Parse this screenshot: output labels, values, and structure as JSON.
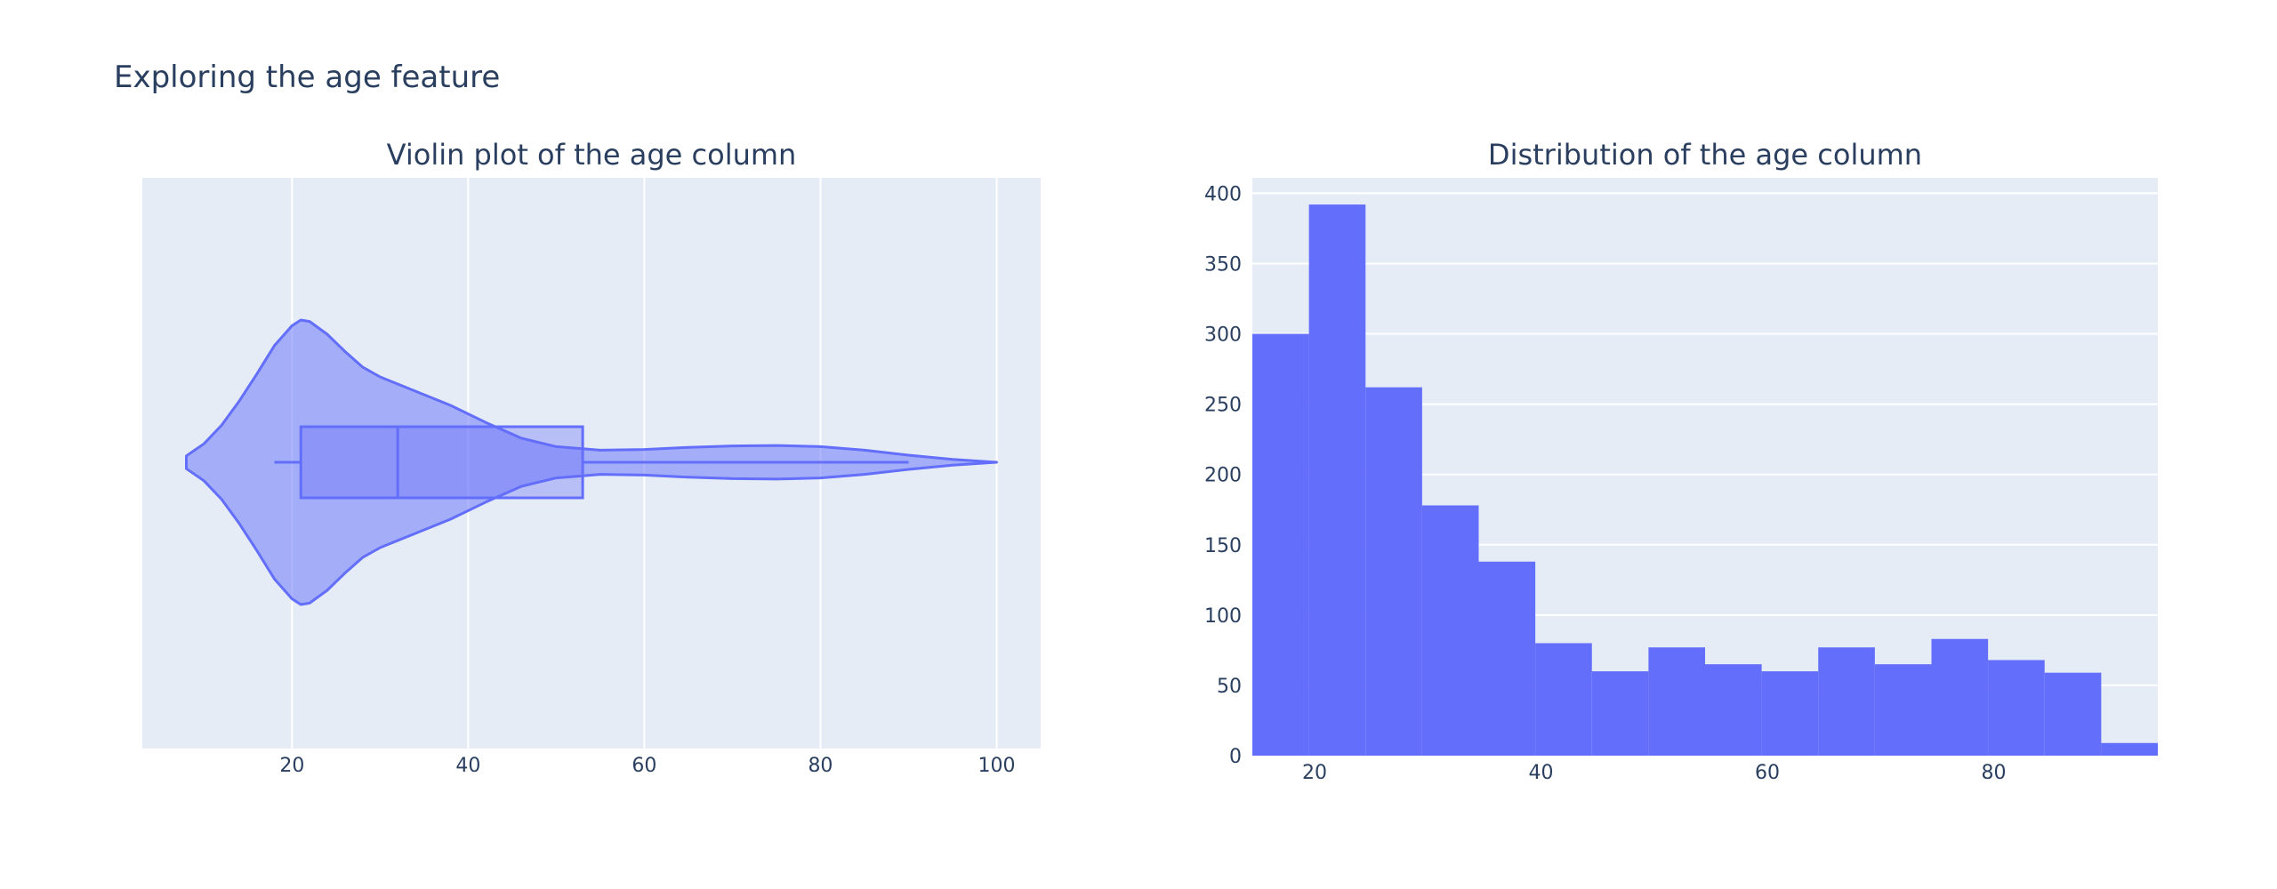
{
  "figure": {
    "title": "Exploring the age feature"
  },
  "chart_data": [
    {
      "type": "violin",
      "title": "Violin plot of the age column",
      "orientation": "horizontal",
      "xlabel": "",
      "ylabel": "",
      "xlim": [
        3,
        105
      ],
      "xticks": [
        20,
        40,
        60,
        80,
        100
      ],
      "grid": true,
      "color": "#636efa",
      "kde_profile": {
        "x": [
          8,
          10,
          12,
          14,
          16,
          18,
          20,
          21,
          22,
          24,
          26,
          28,
          30,
          34,
          38,
          42,
          46,
          50,
          55,
          60,
          65,
          70,
          75,
          80,
          85,
          90,
          95,
          100
        ],
        "width": [
          0.045,
          0.13,
          0.26,
          0.43,
          0.62,
          0.82,
          0.96,
          1.0,
          0.99,
          0.9,
          0.78,
          0.67,
          0.6,
          0.5,
          0.4,
          0.28,
          0.17,
          0.11,
          0.085,
          0.09,
          0.105,
          0.115,
          0.118,
          0.11,
          0.085,
          0.05,
          0.02,
          0.0
        ]
      },
      "box": {
        "whisker_low": 18,
        "q1": 21,
        "median": 32,
        "q3": 53,
        "whisker_high": 90
      }
    },
    {
      "type": "bar",
      "subtype": "histogram",
      "title": "Distribution of the age column",
      "xlabel": "",
      "ylabel": "",
      "xlim": [
        14.5,
        94.5
      ],
      "ylim": [
        0,
        411
      ],
      "xticks": [
        20,
        40,
        60,
        80
      ],
      "yticks": [
        0,
        50,
        100,
        150,
        200,
        250,
        300,
        350,
        400
      ],
      "grid": true,
      "color": "#636efa",
      "bin_edges": [
        14.5,
        19.5,
        24.5,
        29.5,
        34.5,
        39.5,
        44.5,
        49.5,
        54.5,
        59.5,
        64.5,
        69.5,
        74.5,
        79.5,
        84.5,
        89.5,
        94.5
      ],
      "values": [
        300,
        392,
        262,
        178,
        138,
        80,
        60,
        77,
        65,
        60,
        77,
        65,
        83,
        68,
        59,
        9
      ]
    }
  ]
}
